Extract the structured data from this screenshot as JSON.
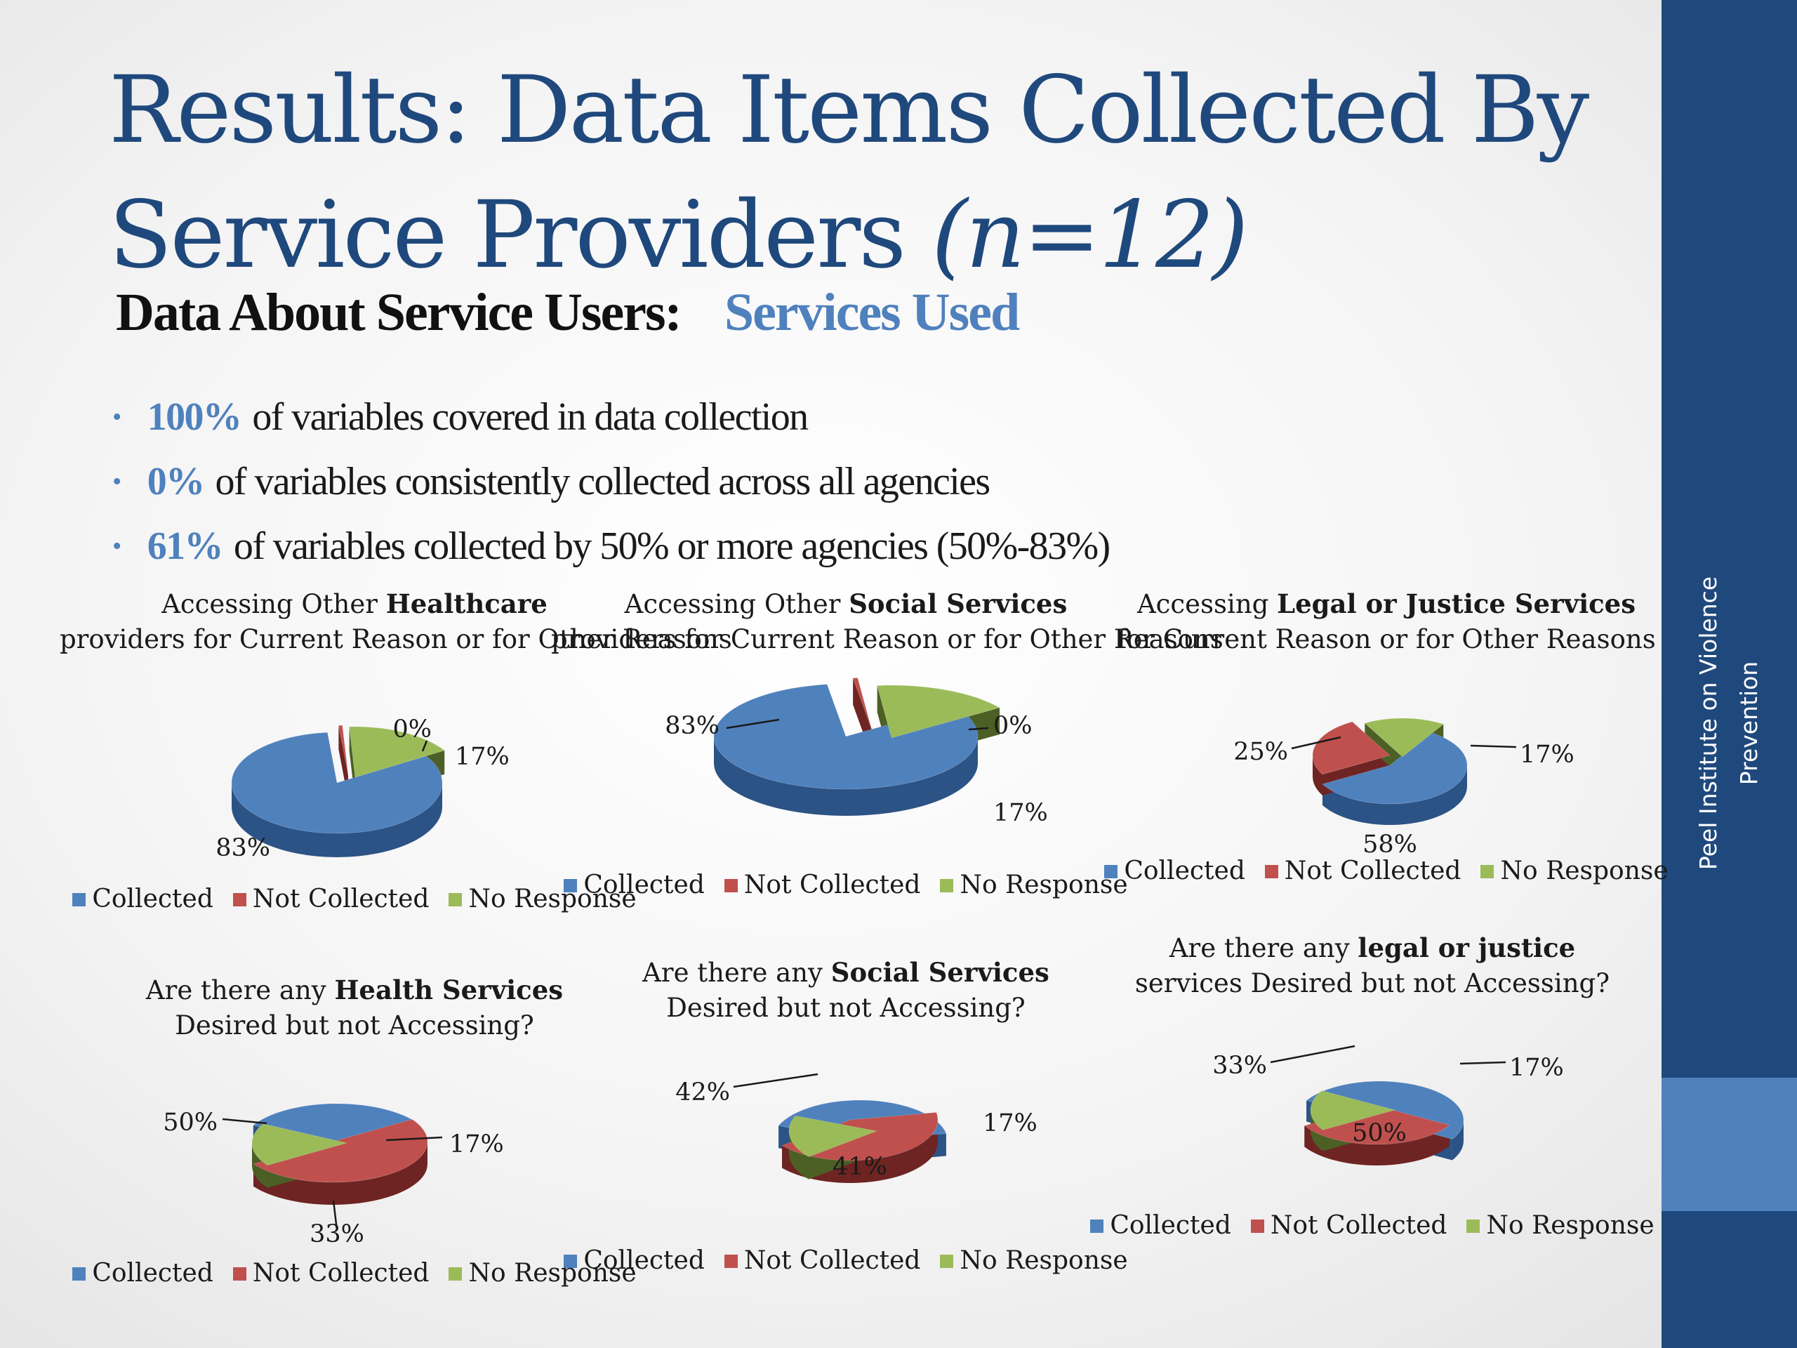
{
  "slide": {
    "title_main": "Results: Data Items Collected By Service Providers",
    "title_n": "(n=12)",
    "subtitle_main": "Data About Service Users:",
    "subtitle_accent": "Services Used",
    "bullets": [
      {
        "pct": "100%",
        "text": "of variables covered in data collection"
      },
      {
        "pct": "0%",
        "text": "of variables consistently collected across all agencies"
      },
      {
        "pct": "61%",
        "text": "of variables collected by 50% or more agencies (50%-83%)"
      }
    ],
    "sidebar_text": "Peel Institute on Violence Prevention"
  },
  "legend_labels": [
    "Collected",
    "Not Collected",
    "No Response"
  ],
  "colors": {
    "collected": "#4f81bd",
    "not_collected": "#c0504d",
    "no_response": "#9bbb59",
    "sidebar": "#1f497d",
    "sidebar_accent": "#4f81bd"
  },
  "chart_data": [
    {
      "type": "pie",
      "title_parts": [
        "Accessing Other ",
        "Healthcare",
        " providers for Current Reason or for Other Reasons"
      ],
      "categories": [
        "Collected",
        "Not Collected",
        "No Response"
      ],
      "values": [
        83,
        0,
        17
      ],
      "labels": [
        "83%",
        "0%",
        "17%"
      ]
    },
    {
      "type": "pie",
      "title_parts": [
        "Accessing Other ",
        "Social Services",
        " providers for Current Reason or for Other Reasons"
      ],
      "categories": [
        "Collected",
        "Not Collected",
        "No Response"
      ],
      "values": [
        83,
        0,
        17
      ],
      "labels": [
        "83%",
        "0%",
        "17%"
      ]
    },
    {
      "type": "pie",
      "title_parts": [
        "Accessing ",
        "Legal or Justice Services",
        " for Current Reason or for Other Reasons"
      ],
      "categories": [
        "Collected",
        "Not Collected",
        "No Response"
      ],
      "values": [
        58,
        25,
        17
      ],
      "labels": [
        "58%",
        "25%",
        "17%"
      ]
    },
    {
      "type": "pie",
      "title_parts": [
        "Are there any ",
        "Health Services",
        " Desired but not Accessing?"
      ],
      "categories": [
        "Collected",
        "Not Collected",
        "No Response"
      ],
      "values": [
        33,
        50,
        17
      ],
      "labels": [
        "33%",
        "50%",
        "17%"
      ]
    },
    {
      "type": "pie",
      "title_parts": [
        "Are there any ",
        "Social Services",
        " Desired but not Accessing?"
      ],
      "categories": [
        "Collected",
        "Not Collected",
        "No Response"
      ],
      "values": [
        41,
        42,
        17
      ],
      "labels": [
        "41%",
        "42%",
        "17%"
      ]
    },
    {
      "type": "pie",
      "title_parts": [
        "Are there any ",
        "legal or justice",
        " services Desired but not Accessing?"
      ],
      "categories": [
        "Collected",
        "Not Collected",
        "No Response"
      ],
      "values": [
        50,
        33,
        17
      ],
      "labels": [
        "50%",
        "33%",
        "17%"
      ]
    }
  ]
}
